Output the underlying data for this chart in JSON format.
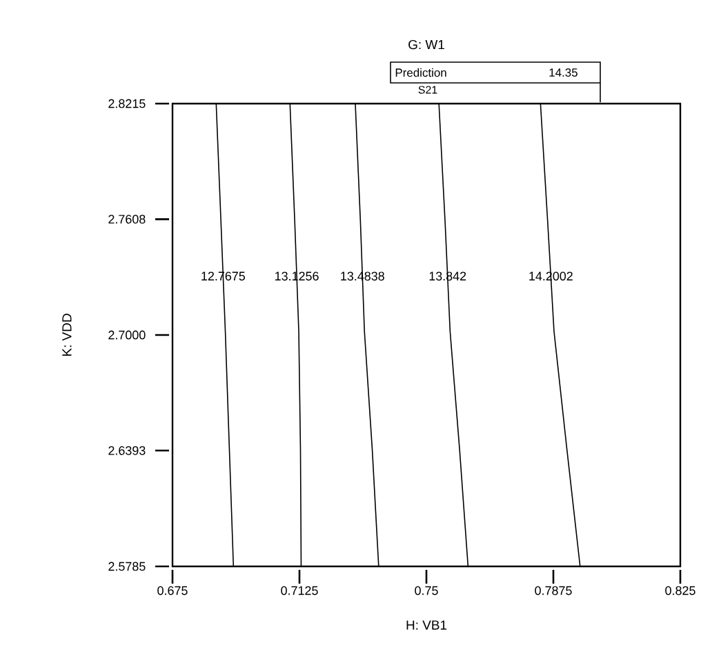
{
  "chart_data": {
    "type": "line",
    "title": "G: W1",
    "xlabel": "H: VB1",
    "ylabel": "K: VDD",
    "annotations": [
      "Prediction",
      "14.35",
      "S21"
    ],
    "xlim": [
      0.675,
      0.825
    ],
    "ylim": [
      2.5785,
      2.8215
    ],
    "xticks": [
      0.675,
      0.7125,
      0.75,
      0.7875,
      0.825
    ],
    "yticks": [
      2.5785,
      2.6393,
      {
        "value": 2.7,
        "label": "2.7000"
      },
      2.7608,
      2.8215
    ],
    "grid": false,
    "marker": "none",
    "line_style": "solid",
    "series": [
      {
        "name": "12.7675",
        "color": "#000000",
        "x": [
          0.6879,
          0.6893,
          0.6906,
          0.6918,
          0.693
        ],
        "values": [
          2.8215,
          2.76,
          2.7018,
          2.64,
          2.5785
        ]
      },
      {
        "name": "13.1256",
        "color": "#000000",
        "x": [
          0.7097,
          0.7111,
          0.7123,
          0.7128,
          0.713
        ],
        "values": [
          2.8215,
          2.76,
          2.7018,
          2.64,
          2.5785
        ]
      },
      {
        "name": "13.4838",
        "color": "#000000",
        "x": [
          0.729,
          0.7305,
          0.7317,
          0.734,
          0.7359
        ],
        "values": [
          2.8215,
          2.76,
          2.7018,
          2.64,
          2.5785
        ]
      },
      {
        "name": "13.842",
        "color": "#000000",
        "x": [
          0.7537,
          0.7555,
          0.757,
          0.7598,
          0.7623
        ],
        "values": [
          2.8215,
          2.76,
          2.7018,
          2.64,
          2.5785
        ]
      },
      {
        "name": "14.2002",
        "color": "#000000",
        "x": [
          0.7837,
          0.7858,
          0.7877,
          0.7915,
          0.7954
        ],
        "values": [
          2.8215,
          2.76,
          2.7018,
          2.64,
          2.5785
        ]
      }
    ]
  }
}
